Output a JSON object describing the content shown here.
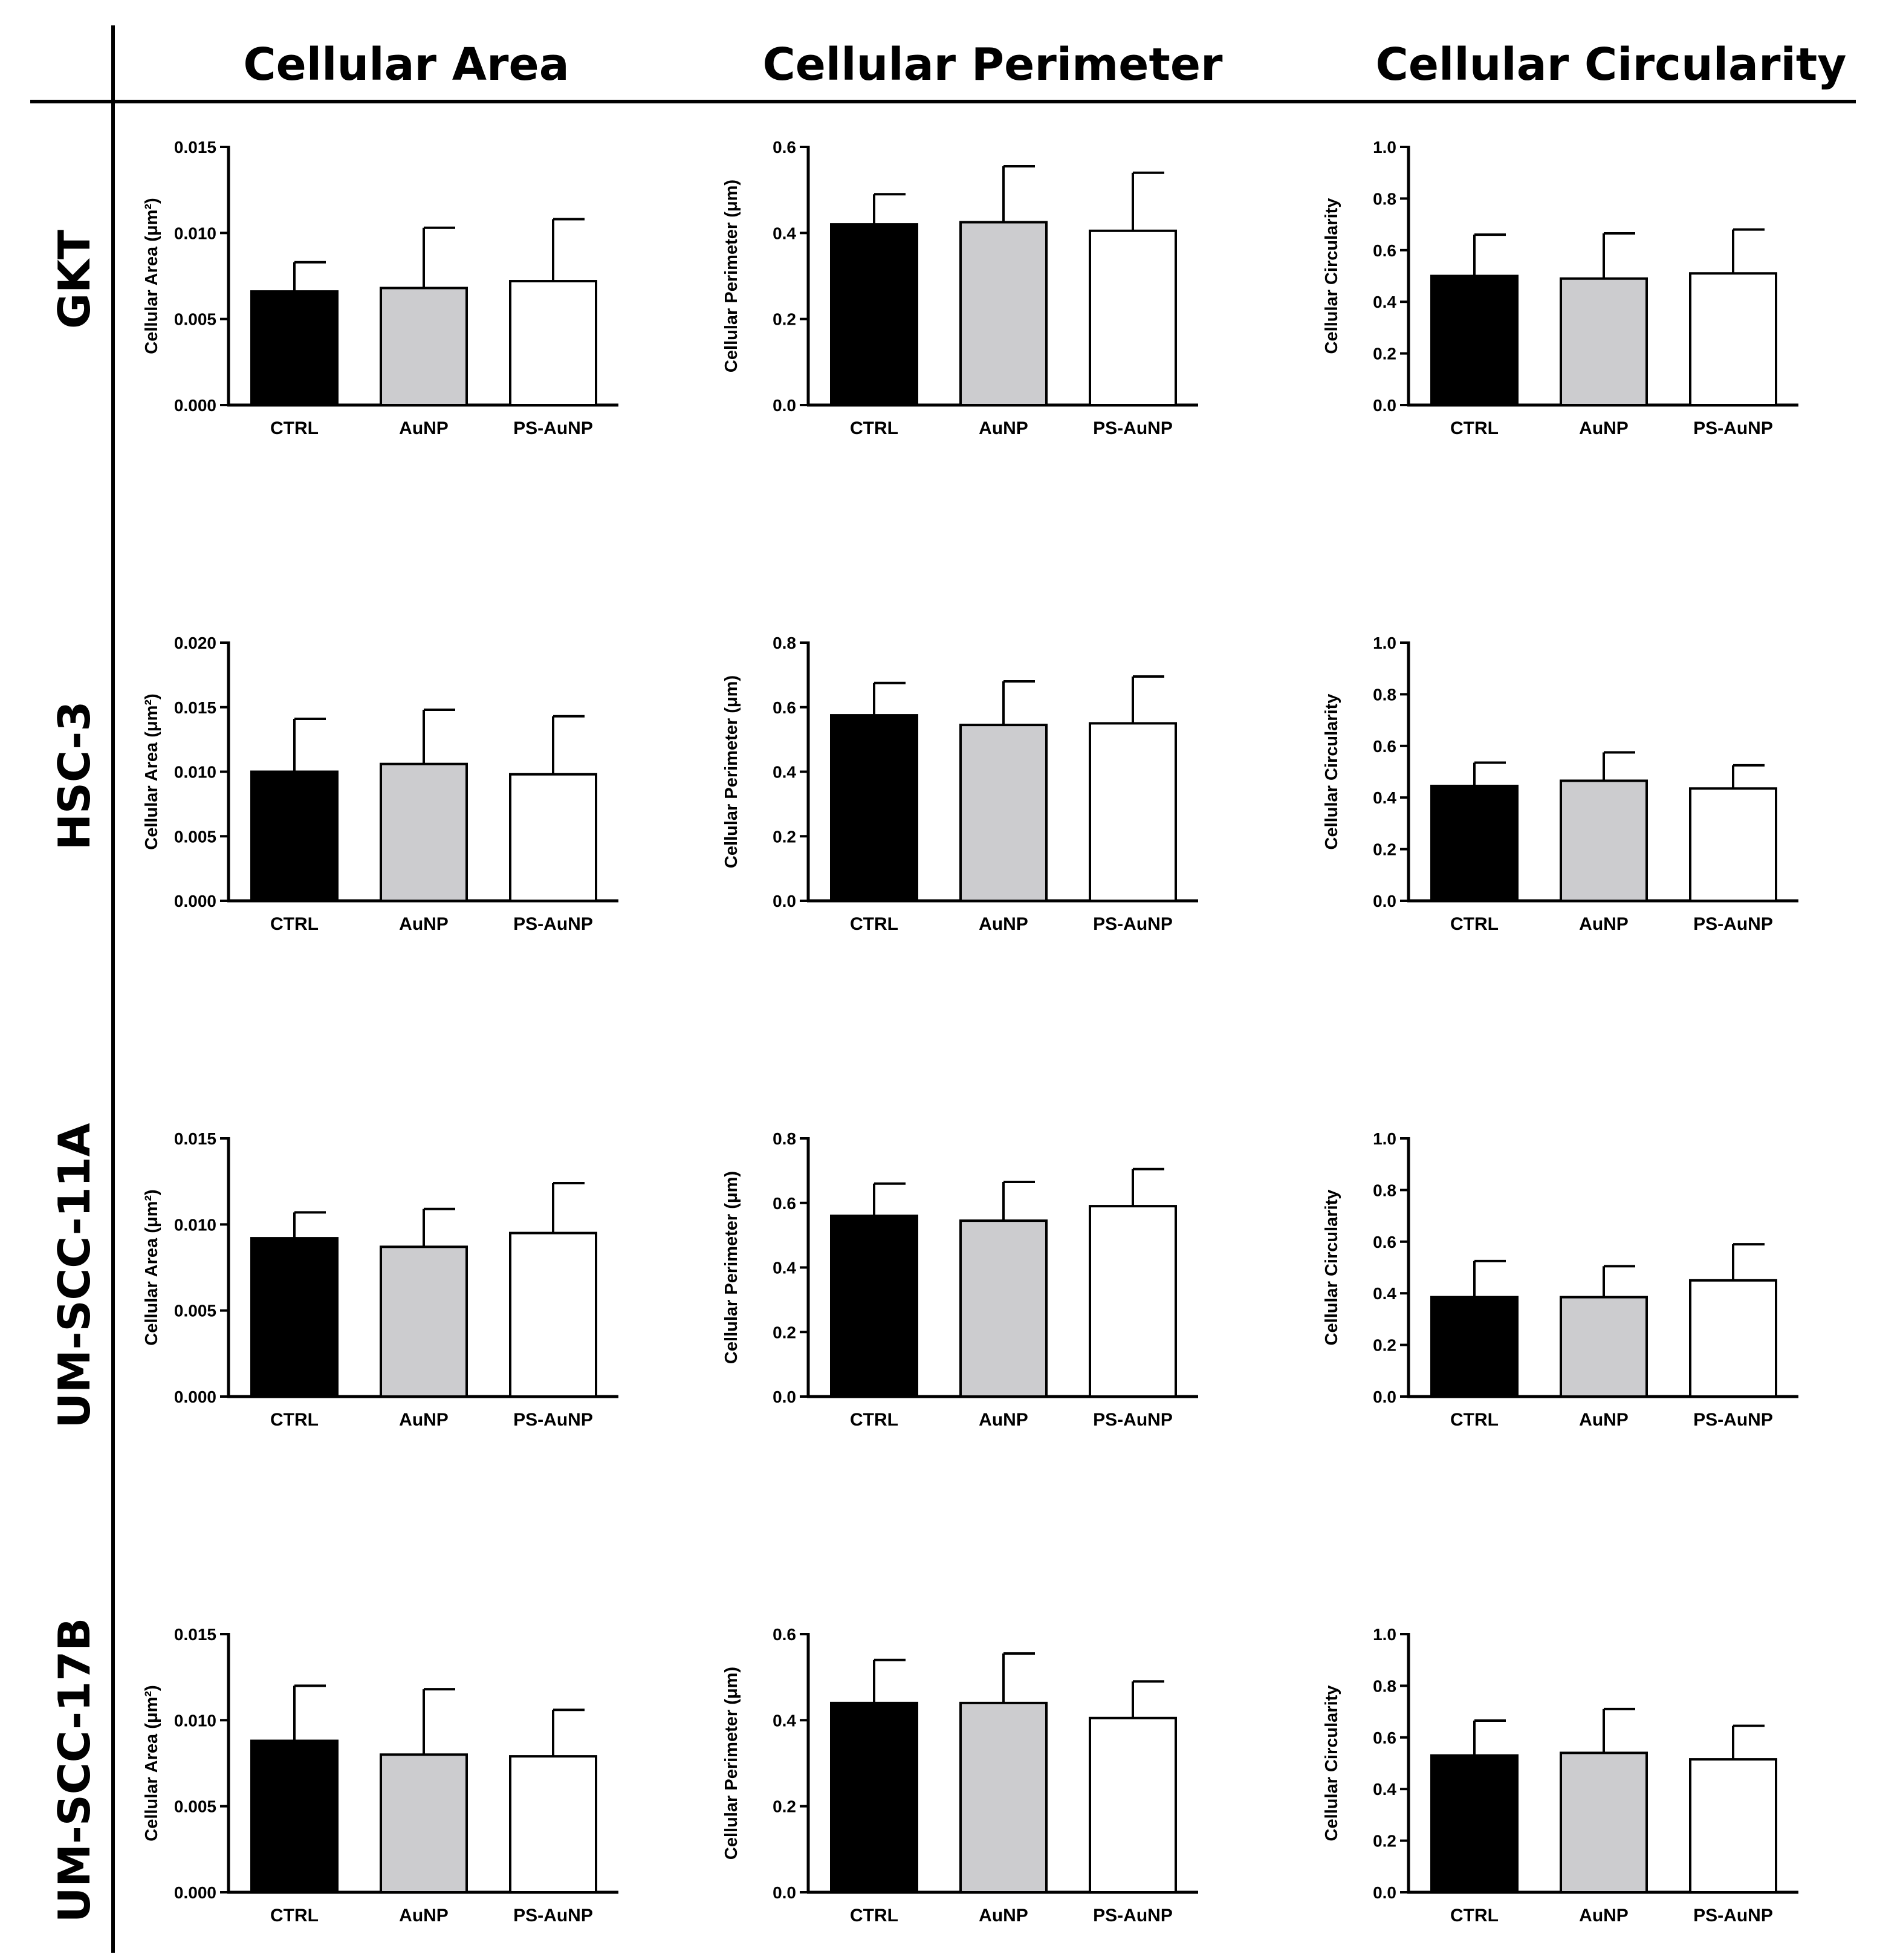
{
  "figure": {
    "column_headers": [
      "Cellular Area",
      "Cellular Perimeter",
      "Cellular Circularity"
    ],
    "row_labels": [
      "GKT",
      "HSC-3",
      "UM-SCC-11A",
      "UM-SCC-17B"
    ]
  },
  "colors": {
    "CTRL": "#000000",
    "AuNP": "#cccccf",
    "PS-AuNP": "#ffffff",
    "axis": "#000000"
  },
  "chart_data": [
    {
      "type": "bar",
      "row": "GKT",
      "column": "Cellular Area",
      "ylabel": "Cellular Area (μm²)",
      "categories": [
        "CTRL",
        "AuNP",
        "PS-AuNP"
      ],
      "values": [
        0.0066,
        0.0068,
        0.0072
      ],
      "errors": [
        0.0017,
        0.0035,
        0.0036
      ],
      "ylim": [
        0,
        0.015
      ],
      "yticks": [
        "0.000",
        "0.005",
        "0.010",
        "0.015"
      ]
    },
    {
      "type": "bar",
      "row": "GKT",
      "column": "Cellular Perimeter",
      "ylabel": "Cellular Perimeter (μm)",
      "categories": [
        "CTRL",
        "AuNP",
        "PS-AuNP"
      ],
      "values": [
        0.42,
        0.425,
        0.405
      ],
      "errors": [
        0.07,
        0.13,
        0.135
      ],
      "ylim": [
        0,
        0.6
      ],
      "yticks": [
        "0.0",
        "0.2",
        "0.4",
        "0.6"
      ]
    },
    {
      "type": "bar",
      "row": "GKT",
      "column": "Cellular Circularity",
      "ylabel": "Cellular Circularity",
      "categories": [
        "CTRL",
        "AuNP",
        "PS-AuNP"
      ],
      "values": [
        0.5,
        0.49,
        0.51
      ],
      "errors": [
        0.16,
        0.175,
        0.17
      ],
      "ylim": [
        0,
        1.0
      ],
      "yticks": [
        "0.0",
        "0.2",
        "0.4",
        "0.6",
        "0.8",
        "1.0"
      ]
    },
    {
      "type": "bar",
      "row": "HSC-3",
      "column": "Cellular Area",
      "ylabel": "Cellular Area (μm²)",
      "categories": [
        "CTRL",
        "AuNP",
        "PS-AuNP"
      ],
      "values": [
        0.01,
        0.0106,
        0.0098
      ],
      "errors": [
        0.0041,
        0.0042,
        0.0045
      ],
      "ylim": [
        0,
        0.02
      ],
      "yticks": [
        "0.000",
        "0.005",
        "0.010",
        "0.015",
        "0.020"
      ]
    },
    {
      "type": "bar",
      "row": "HSC-3",
      "column": "Cellular Perimeter",
      "ylabel": "Cellular Perimeter (μm)",
      "categories": [
        "CTRL",
        "AuNP",
        "PS-AuNP"
      ],
      "values": [
        0.575,
        0.545,
        0.55
      ],
      "errors": [
        0.1,
        0.135,
        0.145
      ],
      "ylim": [
        0,
        0.8
      ],
      "yticks": [
        "0.0",
        "0.2",
        "0.4",
        "0.6",
        "0.8"
      ]
    },
    {
      "type": "bar",
      "row": "HSC-3",
      "column": "Cellular Circularity",
      "ylabel": "Cellular Circularity",
      "categories": [
        "CTRL",
        "AuNP",
        "PS-AuNP"
      ],
      "values": [
        0.445,
        0.465,
        0.435
      ],
      "errors": [
        0.09,
        0.11,
        0.09
      ],
      "ylim": [
        0,
        1.0
      ],
      "yticks": [
        "0.0",
        "0.2",
        "0.4",
        "0.6",
        "0.8",
        "1.0"
      ]
    },
    {
      "type": "bar",
      "row": "UM-SCC-11A",
      "column": "Cellular Area",
      "ylabel": "Cellular Area (μm²)",
      "categories": [
        "CTRL",
        "AuNP",
        "PS-AuNP"
      ],
      "values": [
        0.0092,
        0.0087,
        0.0095
      ],
      "errors": [
        0.0015,
        0.0022,
        0.0029
      ],
      "ylim": [
        0,
        0.015
      ],
      "yticks": [
        "0.000",
        "0.005",
        "0.010",
        "0.015"
      ]
    },
    {
      "type": "bar",
      "row": "UM-SCC-11A",
      "column": "Cellular Perimeter",
      "ylabel": "Cellular Perimeter (μm)",
      "categories": [
        "CTRL",
        "AuNP",
        "PS-AuNP"
      ],
      "values": [
        0.56,
        0.545,
        0.59
      ],
      "errors": [
        0.1,
        0.12,
        0.115
      ],
      "ylim": [
        0,
        0.8
      ],
      "yticks": [
        "0.0",
        "0.2",
        "0.4",
        "0.6",
        "0.8"
      ]
    },
    {
      "type": "bar",
      "row": "UM-SCC-11A",
      "column": "Cellular Circularity",
      "ylabel": "Cellular Circularity",
      "categories": [
        "CTRL",
        "AuNP",
        "PS-AuNP"
      ],
      "values": [
        0.385,
        0.385,
        0.45
      ],
      "errors": [
        0.14,
        0.12,
        0.14
      ],
      "ylim": [
        0,
        1.0
      ],
      "yticks": [
        "0.0",
        "0.2",
        "0.4",
        "0.6",
        "0.8",
        "1.0"
      ]
    },
    {
      "type": "bar",
      "row": "UM-SCC-17B",
      "column": "Cellular Area",
      "ylabel": "Cellular Area (μm²)",
      "categories": [
        "CTRL",
        "AuNP",
        "PS-AuNP"
      ],
      "values": [
        0.0088,
        0.008,
        0.0079
      ],
      "errors": [
        0.0032,
        0.0038,
        0.0027
      ],
      "ylim": [
        0,
        0.015
      ],
      "yticks": [
        "0.000",
        "0.005",
        "0.010",
        "0.015"
      ]
    },
    {
      "type": "bar",
      "row": "UM-SCC-17B",
      "column": "Cellular Perimeter",
      "ylabel": "Cellular Perimeter (μm)",
      "categories": [
        "CTRL",
        "AuNP",
        "PS-AuNP"
      ],
      "values": [
        0.44,
        0.44,
        0.405
      ],
      "errors": [
        0.1,
        0.115,
        0.085
      ],
      "ylim": [
        0,
        0.6
      ],
      "yticks": [
        "0.0",
        "0.2",
        "0.4",
        "0.6"
      ]
    },
    {
      "type": "bar",
      "row": "UM-SCC-17B",
      "column": "Cellular Circularity",
      "ylabel": "Cellular Circularity",
      "categories": [
        "CTRL",
        "AuNP",
        "PS-AuNP"
      ],
      "values": [
        0.53,
        0.54,
        0.515
      ],
      "errors": [
        0.135,
        0.17,
        0.13
      ],
      "ylim": [
        0,
        1.0
      ],
      "yticks": [
        "0.0",
        "0.2",
        "0.4",
        "0.6",
        "0.8",
        "1.0"
      ]
    }
  ]
}
